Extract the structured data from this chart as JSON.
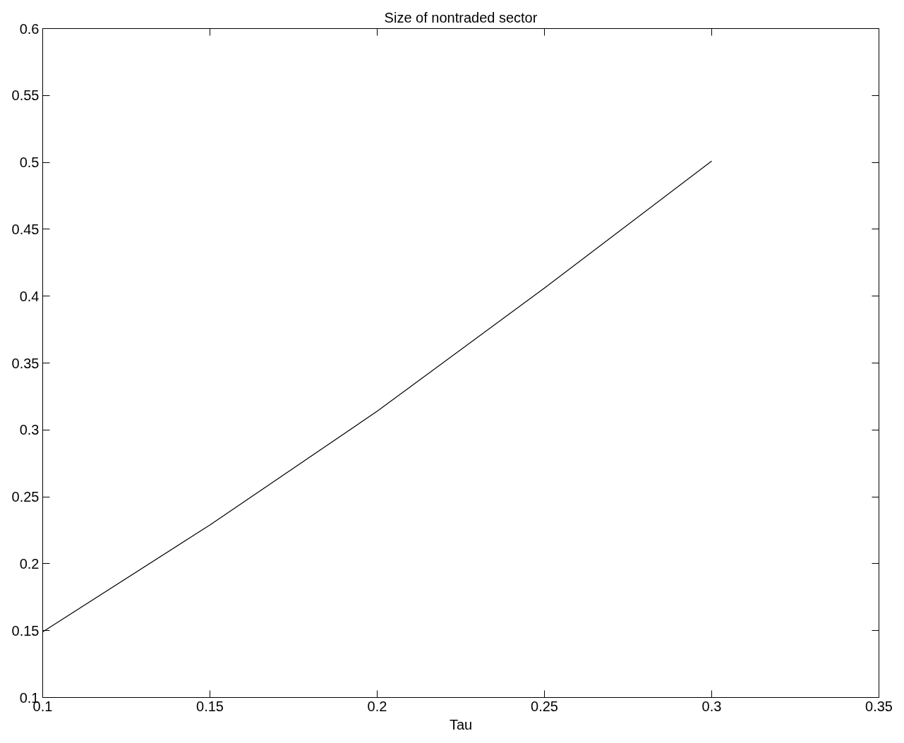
{
  "chart_data": {
    "type": "line",
    "title": "Size of nontraded sector",
    "xlabel": "Tau",
    "x": [
      0.1,
      0.15,
      0.2,
      0.25,
      0.3
    ],
    "series": [
      {
        "color": "#000000",
        "values": [
          0.149,
          0.229,
          0.314,
          0.406,
          0.501
        ]
      }
    ],
    "xlim": [
      0.1,
      0.35
    ],
    "xticks": [
      0.1,
      0.15,
      0.2,
      0.25,
      0.3,
      0.35
    ],
    "ylim": [
      0.1,
      0.6
    ],
    "yticks": [
      0.1,
      0.15,
      0.2,
      0.25,
      0.3,
      0.35,
      0.4,
      0.45,
      0.5,
      0.55,
      0.6
    ],
    "grid": false,
    "marker": "none",
    "line_style": "solid"
  }
}
